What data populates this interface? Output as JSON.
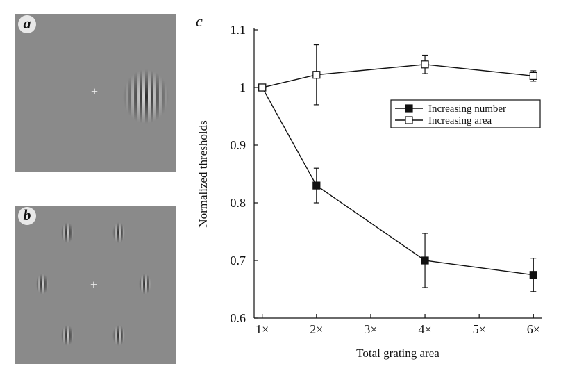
{
  "panels": {
    "a": {
      "label": "a",
      "fixation": "+"
    },
    "b": {
      "label": "b",
      "fixation": "+"
    },
    "c": {
      "label": "c"
    }
  },
  "chart_data": {
    "type": "line",
    "x": [
      1,
      2,
      4,
      6
    ],
    "x_tick_values": [
      1,
      2,
      3,
      4,
      5,
      6
    ],
    "x_tick_labels": [
      "1×",
      "2×",
      "3×",
      "4×",
      "5×",
      "6×"
    ],
    "xlabel": "Total grating area",
    "ylabel": "Normalized thresholds",
    "ylim": [
      0.6,
      1.1
    ],
    "y_ticks": [
      0.6,
      0.7,
      0.8,
      0.9,
      1,
      1.1
    ],
    "y_tick_labels": [
      "0.6",
      "0.7",
      "0.8",
      "0.9",
      "1",
      "1.1"
    ],
    "legend_position": "right",
    "series": [
      {
        "name": "Increasing number",
        "marker": "filled-square",
        "values": [
          1.0,
          0.83,
          0.7,
          0.675
        ],
        "errors": [
          0.0,
          0.03,
          0.047,
          0.029
        ]
      },
      {
        "name": "Increasing area",
        "marker": "open-square",
        "values": [
          1.0,
          1.022,
          1.04,
          1.02
        ],
        "errors": [
          0.0,
          0.052,
          0.016,
          0.009
        ]
      }
    ]
  }
}
